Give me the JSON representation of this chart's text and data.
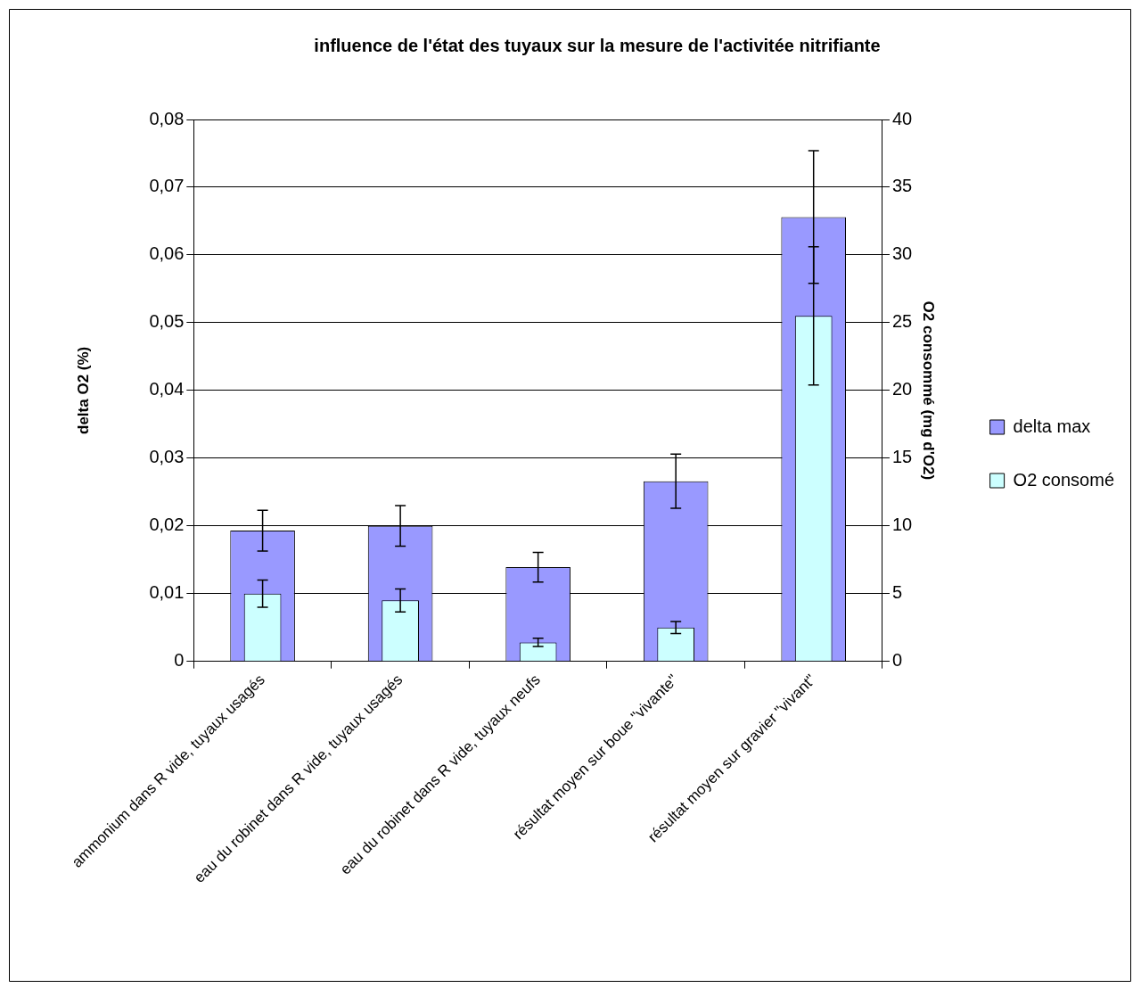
{
  "chart_data": {
    "type": "bar",
    "title": "influence de l'état des tuyaux sur la mesure de l'activitée nitrifiante",
    "ylabel": "delta O2 (%)",
    "y2label": "O2 consommé (mg d'O2)",
    "categories": [
      "ammonium dans R vide, tuyaux usagés",
      "eau du robinet dans R vide, tuyaux usagés",
      "eau du robinet dans R vide, tuyaux neufs",
      "résultat moyen sur boue \"vivante\"",
      "résultat moyen sur gravier \"vivant\""
    ],
    "series": [
      {
        "name": "delta max",
        "color": "#9999ff",
        "values": [
          0.0193,
          0.02,
          0.0139,
          0.0266,
          0.0656
        ],
        "errors": [
          0.003,
          0.003,
          0.0022,
          0.004,
          0.0098
        ]
      },
      {
        "name": "O2 consomé",
        "color": "#ccffff",
        "axis": "y2",
        "values": [
          5.0,
          4.5,
          1.4,
          2.5,
          25.5
        ],
        "errors": [
          1.0,
          0.85,
          0.3,
          0.45,
          5.1
        ]
      }
    ],
    "ylim": [
      0,
      0.08
    ],
    "yticks": [
      {
        "value": 0,
        "label": "0"
      },
      {
        "value": 0.01,
        "label": "0,01"
      },
      {
        "value": 0.02,
        "label": "0,02"
      },
      {
        "value": 0.03,
        "label": "0,03"
      },
      {
        "value": 0.04,
        "label": "0,04"
      },
      {
        "value": 0.05,
        "label": "0,05"
      },
      {
        "value": 0.06,
        "label": "0,06"
      },
      {
        "value": 0.07,
        "label": "0,07"
      },
      {
        "value": 0.08,
        "label": "0,08"
      }
    ],
    "y2lim": [
      0,
      40
    ],
    "y2ticks": [
      0,
      5,
      10,
      15,
      20,
      25,
      30,
      35,
      40
    ],
    "grid": "y",
    "legend": "right"
  }
}
